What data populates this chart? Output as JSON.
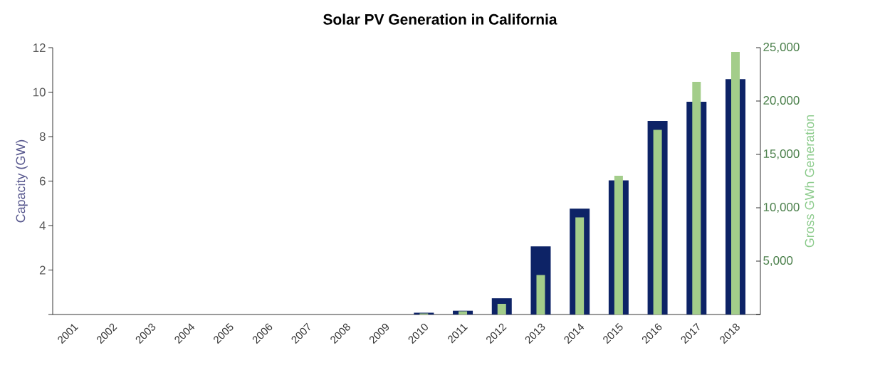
{
  "chart_data": {
    "type": "bar",
    "title": "Solar PV Generation in California",
    "ylabel": "Capacity (GW)",
    "y2label": "Gross GWh Generation",
    "categories": [
      "2001",
      "2002",
      "2003",
      "2004",
      "2005",
      "2006",
      "2007",
      "2008",
      "2009",
      "2010",
      "2011",
      "2012",
      "2013",
      "2014",
      "2015",
      "2016",
      "2017",
      "2018"
    ],
    "series": [
      {
        "color": "#0d2366",
        "values": [
          0,
          0,
          0,
          0,
          0,
          0,
          0,
          0,
          0,
          0.08,
          0.17,
          0.73,
          3.06,
          4.76,
          6.03,
          8.7,
          9.57,
          10.58
        ]
      },
      {
        "color": "#a3cd8a",
        "axis": "y2",
        "values": [
          0,
          0,
          0,
          0,
          0,
          0,
          0,
          0,
          0,
          100,
          300,
          1000,
          3700,
          9100,
          13000,
          17300,
          21800,
          24600
        ]
      }
    ],
    "ylim": [
      0,
      12
    ],
    "yticks": [
      {
        "value": 0,
        "label": null
      },
      2,
      4,
      6,
      8,
      10,
      12
    ],
    "y2lim": [
      0,
      25000
    ],
    "y2ticks": [
      {
        "value": 0,
        "label": null
      },
      {
        "value": 5000,
        "label": "5,000"
      },
      {
        "value": 10000,
        "label": "10,000"
      },
      {
        "value": 15000,
        "label": "15,000"
      },
      {
        "value": 20000,
        "label": "20,000"
      },
      {
        "value": 25000,
        "label": "25,000"
      }
    ],
    "grid": false
  }
}
